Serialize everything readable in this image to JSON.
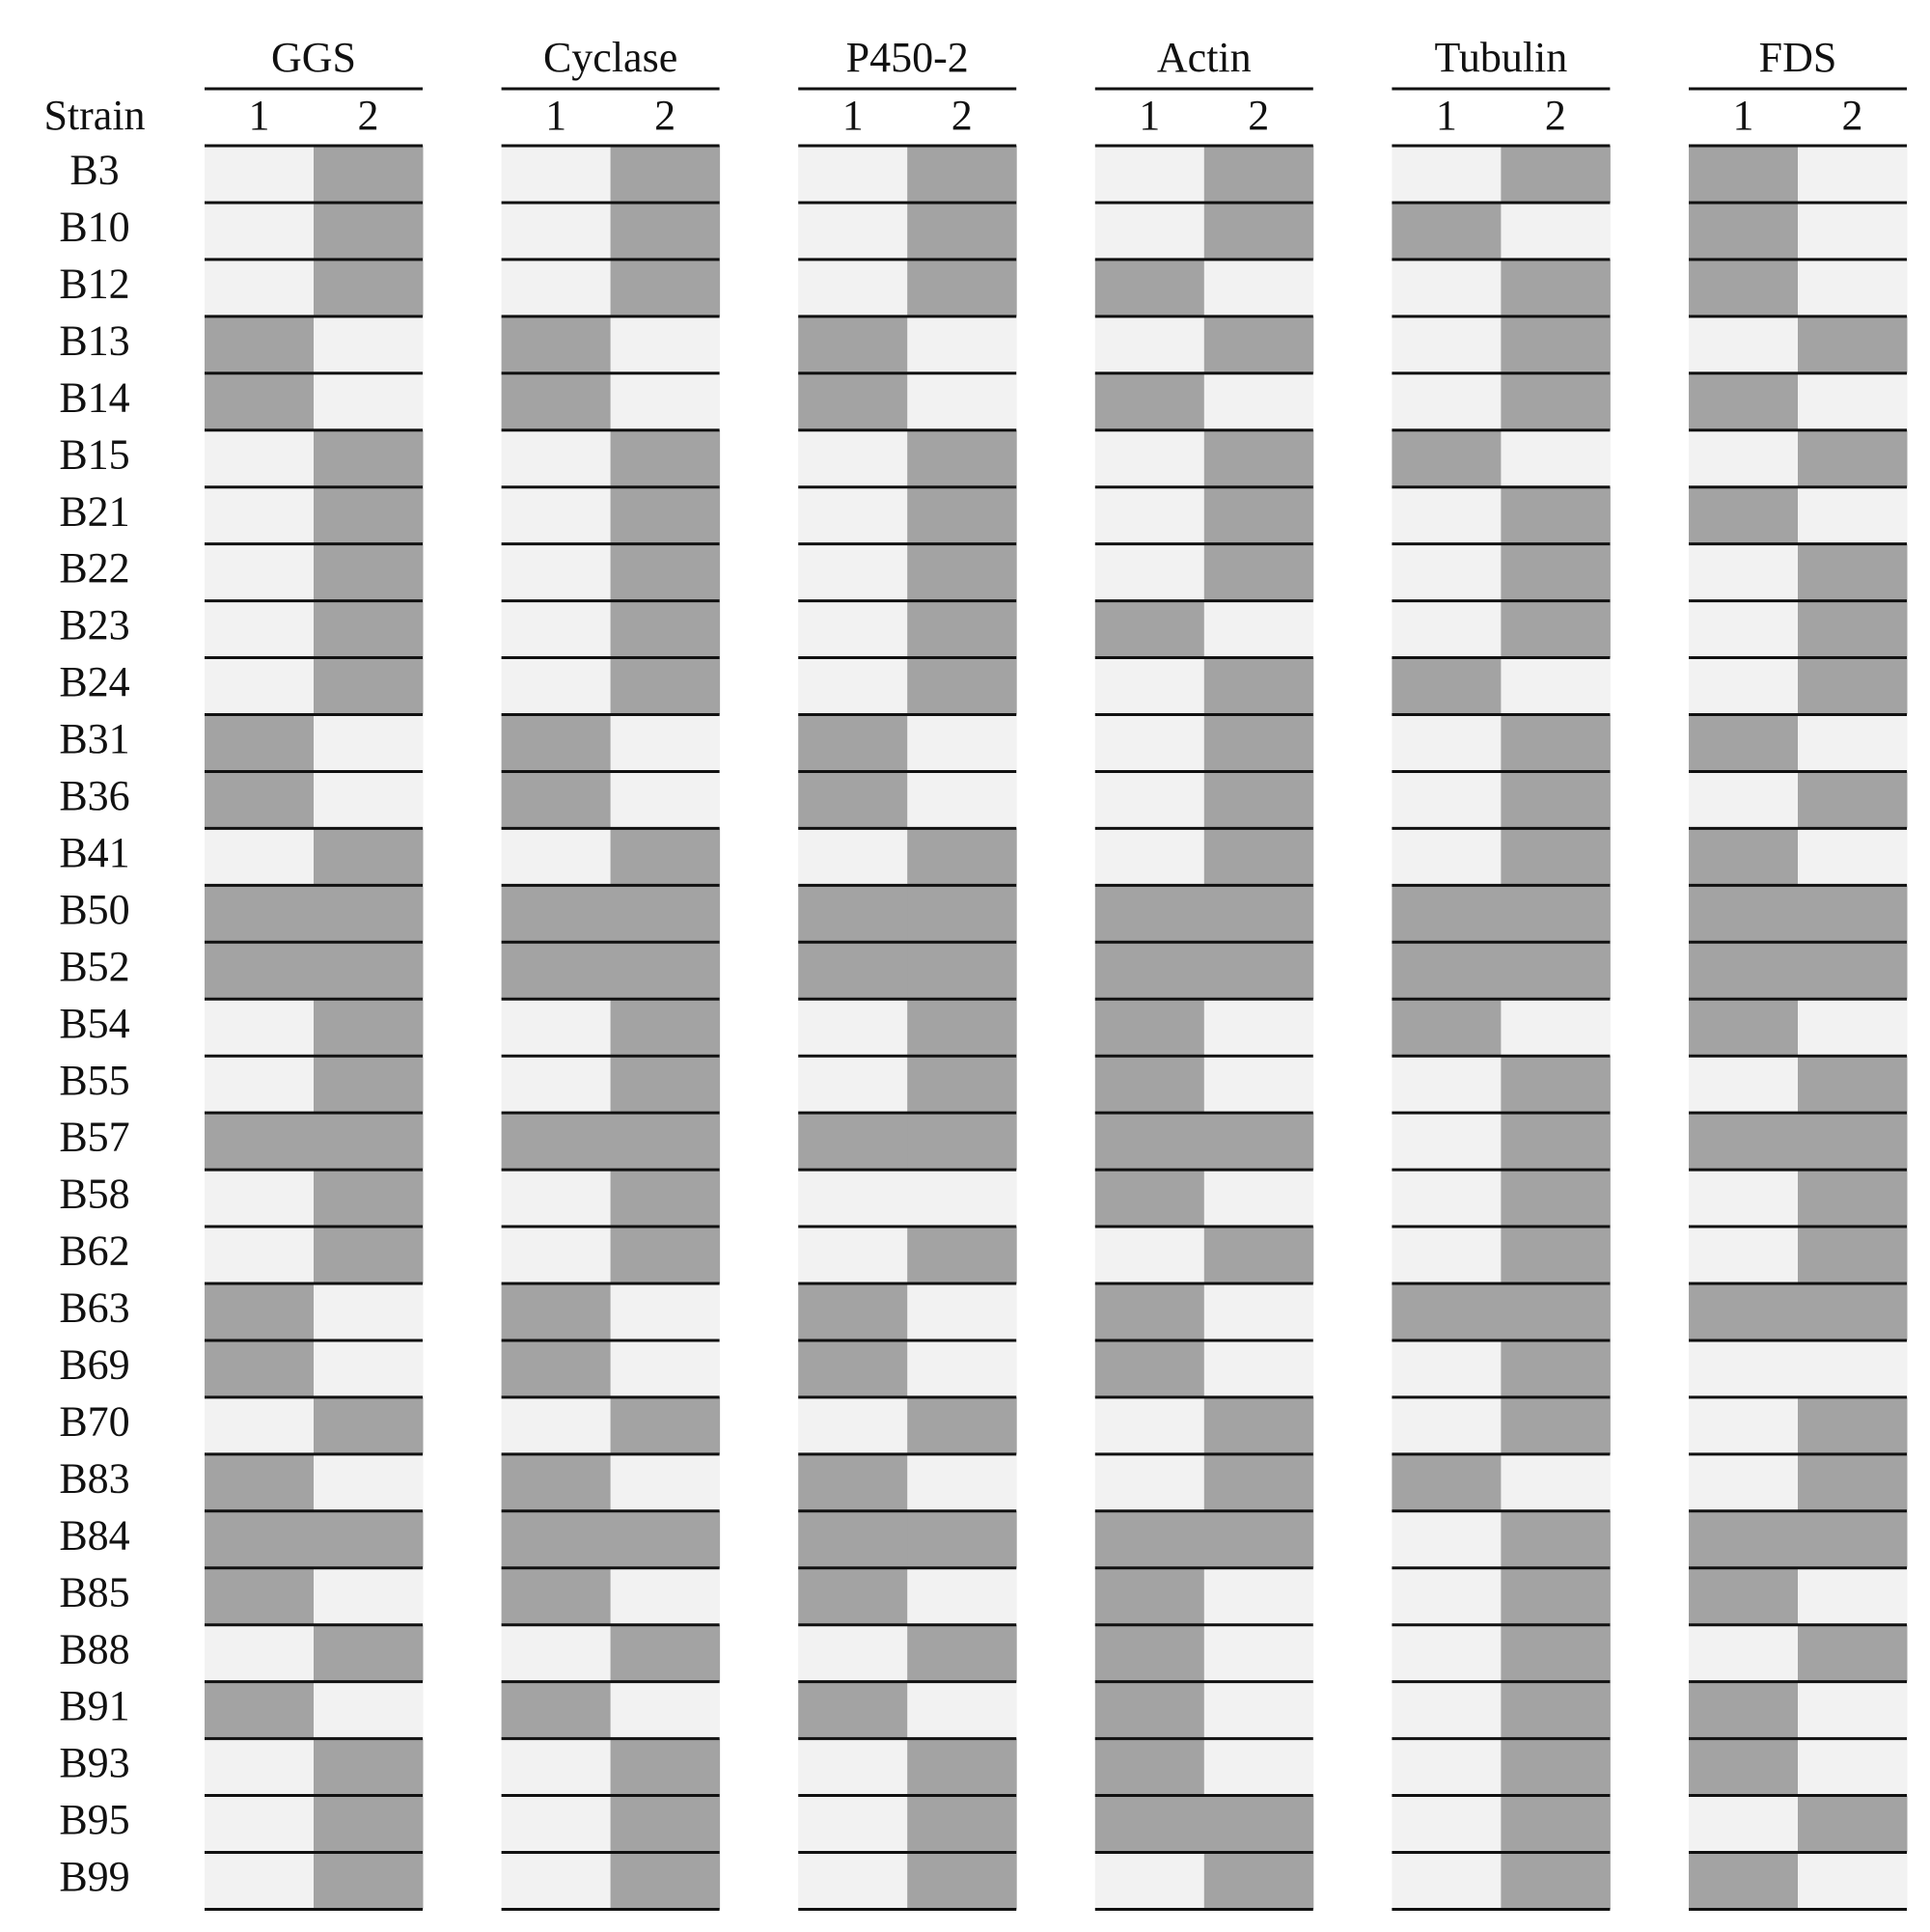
{
  "header": {
    "strain": "Strain"
  },
  "genes": [
    {
      "name": "GGS",
      "alleles": [
        "1",
        "2"
      ]
    },
    {
      "name": "Cyclase",
      "alleles": [
        "1",
        "2"
      ]
    },
    {
      "name": "P450-2",
      "alleles": [
        "1",
        "2"
      ]
    },
    {
      "name": "Actin",
      "alleles": [
        "1",
        "2"
      ]
    },
    {
      "name": "Tubulin",
      "alleles": [
        "1",
        "2"
      ]
    },
    {
      "name": "FDS",
      "alleles": [
        "1",
        "2"
      ]
    }
  ],
  "rows": [
    {
      "strain": "B3",
      "cells": [
        [
          0,
          1
        ],
        [
          0,
          1
        ],
        [
          0,
          1
        ],
        [
          0,
          1
        ],
        [
          0,
          1
        ],
        [
          1,
          0
        ]
      ]
    },
    {
      "strain": "B10",
      "cells": [
        [
          0,
          1
        ],
        [
          0,
          1
        ],
        [
          0,
          1
        ],
        [
          0,
          1
        ],
        [
          1,
          0
        ],
        [
          1,
          0
        ]
      ]
    },
    {
      "strain": "B12",
      "cells": [
        [
          0,
          1
        ],
        [
          0,
          1
        ],
        [
          0,
          1
        ],
        [
          1,
          0
        ],
        [
          0,
          1
        ],
        [
          1,
          0
        ]
      ]
    },
    {
      "strain": "B13",
      "cells": [
        [
          1,
          0
        ],
        [
          1,
          0
        ],
        [
          1,
          0
        ],
        [
          0,
          1
        ],
        [
          0,
          1
        ],
        [
          0,
          1
        ]
      ]
    },
    {
      "strain": "B14",
      "cells": [
        [
          1,
          0
        ],
        [
          1,
          0
        ],
        [
          1,
          0
        ],
        [
          1,
          0
        ],
        [
          0,
          1
        ],
        [
          1,
          0
        ]
      ]
    },
    {
      "strain": "B15",
      "cells": [
        [
          0,
          1
        ],
        [
          0,
          1
        ],
        [
          0,
          1
        ],
        [
          0,
          1
        ],
        [
          1,
          0
        ],
        [
          0,
          1
        ]
      ]
    },
    {
      "strain": "B21",
      "cells": [
        [
          0,
          1
        ],
        [
          0,
          1
        ],
        [
          0,
          1
        ],
        [
          0,
          1
        ],
        [
          0,
          1
        ],
        [
          1,
          0
        ]
      ]
    },
    {
      "strain": "B22",
      "cells": [
        [
          0,
          1
        ],
        [
          0,
          1
        ],
        [
          0,
          1
        ],
        [
          0,
          1
        ],
        [
          0,
          1
        ],
        [
          0,
          1
        ]
      ]
    },
    {
      "strain": "B23",
      "cells": [
        [
          0,
          1
        ],
        [
          0,
          1
        ],
        [
          0,
          1
        ],
        [
          1,
          0
        ],
        [
          0,
          1
        ],
        [
          0,
          1
        ]
      ]
    },
    {
      "strain": "B24",
      "cells": [
        [
          0,
          1
        ],
        [
          0,
          1
        ],
        [
          0,
          1
        ],
        [
          0,
          1
        ],
        [
          1,
          0
        ],
        [
          0,
          1
        ]
      ]
    },
    {
      "strain": "B31",
      "cells": [
        [
          1,
          0
        ],
        [
          1,
          0
        ],
        [
          1,
          0
        ],
        [
          0,
          1
        ],
        [
          0,
          1
        ],
        [
          1,
          0
        ]
      ]
    },
    {
      "strain": "B36",
      "cells": [
        [
          1,
          0
        ],
        [
          1,
          0
        ],
        [
          1,
          0
        ],
        [
          0,
          1
        ],
        [
          0,
          1
        ],
        [
          0,
          1
        ]
      ]
    },
    {
      "strain": "B41",
      "cells": [
        [
          0,
          1
        ],
        [
          0,
          1
        ],
        [
          0,
          1
        ],
        [
          0,
          1
        ],
        [
          0,
          1
        ],
        [
          1,
          0
        ]
      ]
    },
    {
      "strain": "B50",
      "cells": [
        [
          1,
          1
        ],
        [
          1,
          1
        ],
        [
          1,
          1
        ],
        [
          1,
          1
        ],
        [
          1,
          1
        ],
        [
          1,
          1
        ]
      ]
    },
    {
      "strain": "B52",
      "cells": [
        [
          1,
          1
        ],
        [
          1,
          1
        ],
        [
          1,
          1
        ],
        [
          1,
          1
        ],
        [
          1,
          1
        ],
        [
          1,
          1
        ]
      ]
    },
    {
      "strain": "B54",
      "cells": [
        [
          0,
          1
        ],
        [
          0,
          1
        ],
        [
          0,
          1
        ],
        [
          1,
          0
        ],
        [
          1,
          0
        ],
        [
          1,
          0
        ]
      ]
    },
    {
      "strain": "B55",
      "cells": [
        [
          0,
          1
        ],
        [
          0,
          1
        ],
        [
          0,
          1
        ],
        [
          1,
          0
        ],
        [
          0,
          1
        ],
        [
          0,
          1
        ]
      ]
    },
    {
      "strain": "B57",
      "cells": [
        [
          1,
          1
        ],
        [
          1,
          1
        ],
        [
          1,
          1
        ],
        [
          1,
          1
        ],
        [
          0,
          1
        ],
        [
          1,
          1
        ]
      ]
    },
    {
      "strain": "B58",
      "cells": [
        [
          0,
          1
        ],
        [
          0,
          1
        ],
        [
          0,
          0
        ],
        [
          1,
          0
        ],
        [
          0,
          1
        ],
        [
          0,
          1
        ]
      ]
    },
    {
      "strain": "B62",
      "cells": [
        [
          0,
          1
        ],
        [
          0,
          1
        ],
        [
          0,
          1
        ],
        [
          0,
          1
        ],
        [
          0,
          1
        ],
        [
          0,
          1
        ]
      ]
    },
    {
      "strain": "B63",
      "cells": [
        [
          1,
          0
        ],
        [
          1,
          0
        ],
        [
          1,
          0
        ],
        [
          1,
          0
        ],
        [
          1,
          1
        ],
        [
          1,
          1
        ]
      ]
    },
    {
      "strain": "B69",
      "cells": [
        [
          1,
          0
        ],
        [
          1,
          0
        ],
        [
          1,
          0
        ],
        [
          1,
          0
        ],
        [
          0,
          1
        ],
        [
          0,
          0
        ]
      ]
    },
    {
      "strain": "B70",
      "cells": [
        [
          0,
          1
        ],
        [
          0,
          1
        ],
        [
          0,
          1
        ],
        [
          0,
          1
        ],
        [
          0,
          1
        ],
        [
          0,
          1
        ]
      ]
    },
    {
      "strain": "B83",
      "cells": [
        [
          1,
          0
        ],
        [
          1,
          0
        ],
        [
          1,
          0
        ],
        [
          0,
          1
        ],
        [
          1,
          0
        ],
        [
          0,
          1
        ]
      ]
    },
    {
      "strain": "B84",
      "cells": [
        [
          1,
          1
        ],
        [
          1,
          1
        ],
        [
          1,
          1
        ],
        [
          1,
          1
        ],
        [
          0,
          1
        ],
        [
          1,
          1
        ]
      ]
    },
    {
      "strain": "B85",
      "cells": [
        [
          1,
          0
        ],
        [
          1,
          0
        ],
        [
          1,
          0
        ],
        [
          1,
          0
        ],
        [
          0,
          1
        ],
        [
          1,
          0
        ]
      ]
    },
    {
      "strain": "B88",
      "cells": [
        [
          0,
          1
        ],
        [
          0,
          1
        ],
        [
          0,
          1
        ],
        [
          1,
          0
        ],
        [
          0,
          1
        ],
        [
          0,
          1
        ]
      ]
    },
    {
      "strain": "B91",
      "cells": [
        [
          1,
          0
        ],
        [
          1,
          0
        ],
        [
          1,
          0
        ],
        [
          1,
          0
        ],
        [
          0,
          1
        ],
        [
          1,
          0
        ]
      ]
    },
    {
      "strain": "B93",
      "cells": [
        [
          0,
          1
        ],
        [
          0,
          1
        ],
        [
          0,
          1
        ],
        [
          1,
          0
        ],
        [
          0,
          1
        ],
        [
          1,
          0
        ]
      ]
    },
    {
      "strain": "B95",
      "cells": [
        [
          0,
          1
        ],
        [
          0,
          1
        ],
        [
          0,
          1
        ],
        [
          1,
          1
        ],
        [
          0,
          1
        ],
        [
          0,
          1
        ]
      ]
    },
    {
      "strain": "B99",
      "cells": [
        [
          0,
          1
        ],
        [
          0,
          1
        ],
        [
          0,
          1
        ],
        [
          0,
          1
        ],
        [
          0,
          1
        ],
        [
          1,
          0
        ]
      ]
    }
  ]
}
